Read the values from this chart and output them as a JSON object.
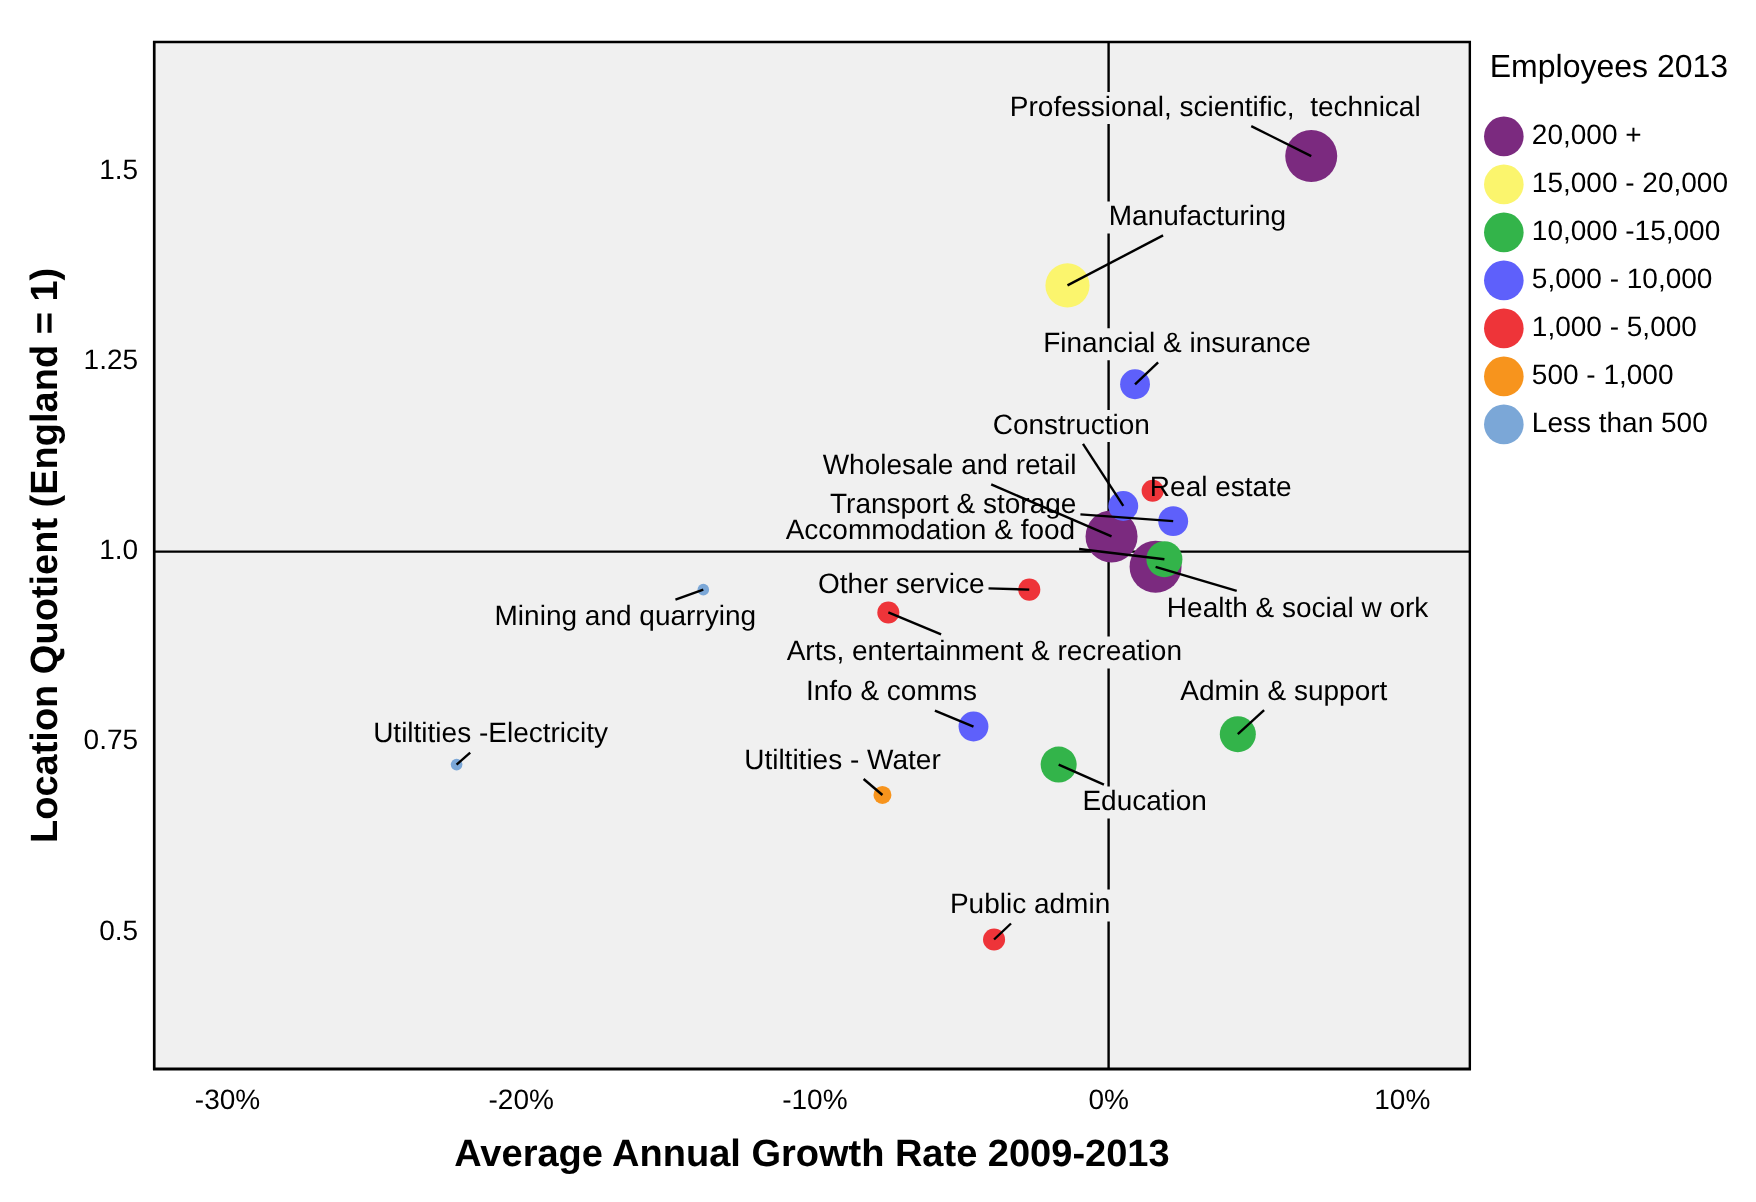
{
  "chart_data": {
    "type": "bubble",
    "xlabel": "Average Annual Growth Rate 2009-2013",
    "ylabel": "Location Quotient (England = 1)",
    "legend_title": "Employees 2013",
    "legend": "right",
    "grid": false,
    "xlim": [
      -32.5,
      12.3
    ],
    "ylim": [
      0.32,
      1.67
    ],
    "xticks": [
      {
        "value": -30,
        "label": "-30%"
      },
      {
        "value": -20,
        "label": "-20%"
      },
      {
        "value": -10,
        "label": "-10%"
      },
      {
        "value": 0,
        "label": "0%"
      },
      {
        "value": 10,
        "label": "10%"
      }
    ],
    "yticks": [
      0.5,
      0.75,
      {
        "value": 1,
        "label": "1.0"
      },
      1.25,
      1.5
    ],
    "ref_lines": [
      {
        "axis": "x",
        "value": 0,
        "color": "#000000"
      },
      {
        "axis": "y",
        "value": 1,
        "color": "#000000"
      }
    ],
    "series": [
      {
        "name": "20,000 +",
        "color": "#7b2a7f",
        "x": [
          6.9,
          0.1,
          1.6
        ],
        "values": [
          1.52,
          1.02,
          0.98
        ],
        "sizes": [
          1,
          1,
          1
        ]
      },
      {
        "name": "15,000 - 20,000",
        "color": "#fbf56d",
        "x": [
          -1.4
        ],
        "values": [
          1.35
        ],
        "sizes": [
          0.72
        ]
      },
      {
        "name": "10,000 -15,000",
        "color": "#33b44a",
        "x": [
          1.9,
          4.4,
          -1.7
        ],
        "values": [
          0.99,
          0.76,
          0.72
        ],
        "sizes": [
          0.48,
          0.48,
          0.48
        ]
      },
      {
        "name": "5,000 - 10,000",
        "color": "#5e60fb",
        "x": [
          0.9,
          0.5,
          2.2,
          -4.6
        ],
        "values": [
          1.22,
          1.06,
          1.04,
          0.77
        ],
        "sizes": [
          0.33,
          0.33,
          0.33,
          0.33
        ]
      },
      {
        "name": "1,000 - 5,000",
        "color": "#ee3439",
        "x": [
          1.5,
          -2.7,
          -7.5,
          -3.9
        ],
        "values": [
          1.08,
          0.95,
          0.92,
          0.49
        ],
        "sizes": [
          0.18,
          0.18,
          0.18,
          0.18
        ]
      },
      {
        "name": "500 - 1,000",
        "color": "#f7941d",
        "x": [
          -7.7
        ],
        "values": [
          0.68
        ],
        "sizes": [
          0.12
        ]
      },
      {
        "name": "Less than 500",
        "color": "#7ba7d7",
        "x": [
          -13.8,
          -22.2
        ],
        "values": [
          0.95,
          0.72
        ],
        "sizes": [
          0.05,
          0.05
        ]
      }
    ],
    "annotations": [
      {
        "text": "Professional, scientific,  technical",
        "x": 6.9,
        "y": 1.52
      },
      {
        "text": "Manufacturing",
        "x": -1.4,
        "y": 1.35
      },
      {
        "text": "Financial & insurance",
        "x": 0.9,
        "y": 1.22
      },
      {
        "text": "Construction",
        "x": 0.5,
        "y": 1.06
      },
      {
        "text": "Wholesale and retail",
        "x": 0.1,
        "y": 1.02
      },
      {
        "text": "Real estate",
        "x": 1.5,
        "y": 1.08
      },
      {
        "text": "Transport & storage",
        "x": 2.2,
        "y": 1.04
      },
      {
        "text": "Accommodation & food",
        "x": 1.9,
        "y": 0.99
      },
      {
        "text": "Health & social w ork",
        "x": 1.6,
        "y": 0.98
      },
      {
        "text": "Mining and quarrying",
        "x": -13.8,
        "y": 0.95
      },
      {
        "text": "Other service",
        "x": -2.7,
        "y": 0.95
      },
      {
        "text": "Arts, entertainment & recreation",
        "x": -7.5,
        "y": 0.92
      },
      {
        "text": "Info & comms",
        "x": -4.6,
        "y": 0.77
      },
      {
        "text": "Admin & support",
        "x": 4.4,
        "y": 0.76
      },
      {
        "text": "Utiltities -Electricity",
        "x": -22.2,
        "y": 0.72
      },
      {
        "text": "Utiltities - Water",
        "x": -7.7,
        "y": 0.68
      },
      {
        "text": "Education",
        "x": -1.7,
        "y": 0.72
      },
      {
        "text": "Public admin",
        "x": -3.9,
        "y": 0.49
      }
    ]
  }
}
